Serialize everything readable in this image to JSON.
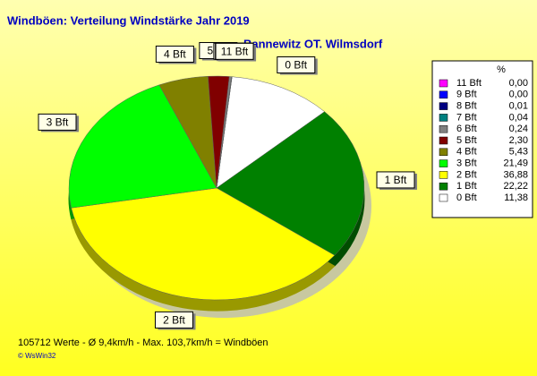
{
  "chart_data": {
    "type": "pie",
    "title": "Windböen: Verteilung Windstärke  Jahr 2019",
    "subtitle": "Bannewitz OT. Wilmsdorf",
    "legend_header": "%",
    "categories": [
      "0 Bft",
      "1 Bft",
      "2 Bft",
      "3 Bft",
      "4 Bft",
      "5 Bft",
      "6 Bft",
      "7 Bft",
      "8 Bft",
      "9 Bft",
      "11 Bft"
    ],
    "values": [
      11.38,
      22.22,
      36.88,
      21.49,
      5.43,
      2.3,
      0.24,
      0.04,
      0.01,
      0,
      0
    ],
    "value_labels": [
      "11,38",
      "22,22",
      "36,88",
      "21,49",
      "5,43",
      "2,30",
      "0,24",
      "0,04",
      "0,01",
      "0,00",
      "0,00"
    ],
    "colors": [
      "#ffffff",
      "#008000",
      "#ffff00",
      "#00ff00",
      "#808000",
      "#800000",
      "#808080",
      "#008080",
      "#000080",
      "#0000ff",
      "#ff00ff"
    ],
    "footer": "105712 Werte   -   Ø 9,4km/h  -  Max. 103,7km/h = Windböen",
    "credit": "© WsWin32"
  }
}
